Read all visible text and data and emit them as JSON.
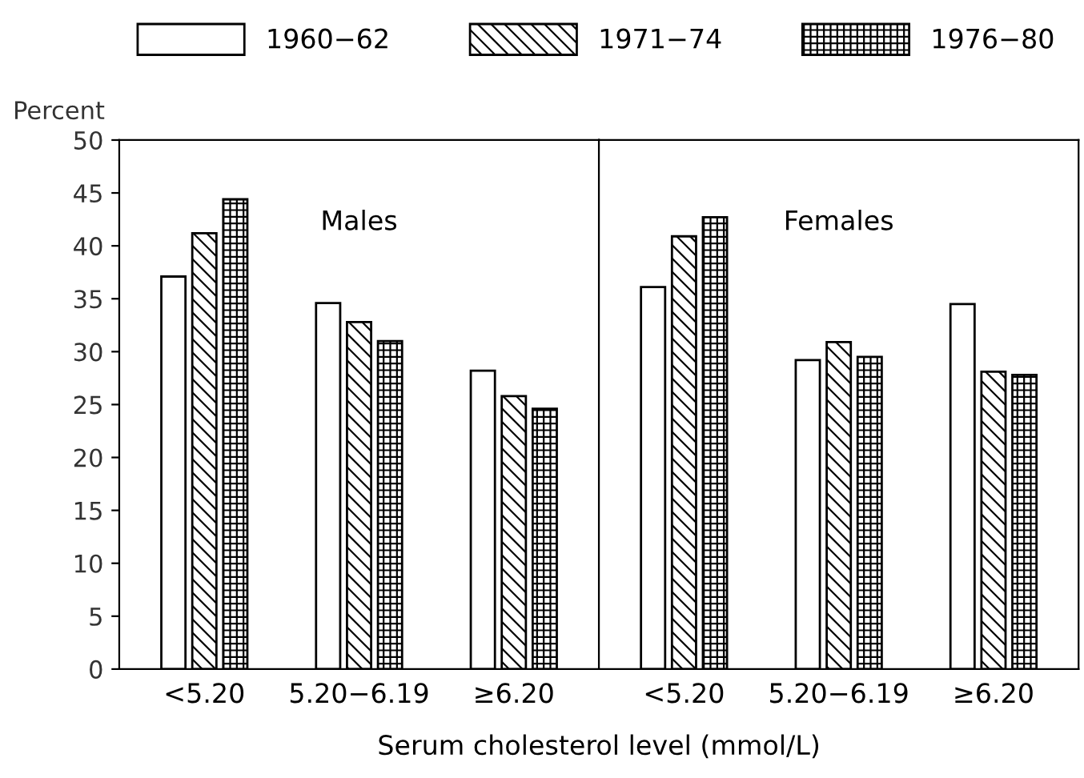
{
  "chart_data": [
    {
      "type": "bar",
      "categories": [
        "<5.20",
        "5.20−6.19",
        "≥6.20"
      ],
      "ylabel": "Percent",
      "xlabel": "Serum cholesterol level (mmol/L)",
      "annotations": [
        "Males"
      ],
      "ylim": [
        0,
        50
      ],
      "yticks": [
        0,
        5,
        10,
        15,
        20,
        25,
        30,
        35,
        40,
        45,
        50
      ],
      "grid": false,
      "legend": "top",
      "series": [
        {
          "name": "1960−62",
          "color": "#ffffff",
          "values": [
            37.1,
            34.6,
            28.2
          ]
        },
        {
          "name": "1971−74",
          "color": "#000000",
          "values": [
            41.2,
            32.8,
            25.8
          ]
        },
        {
          "name": "1976−80",
          "color": "#000000",
          "values": [
            44.4,
            31.0,
            24.6
          ]
        }
      ]
    },
    {
      "type": "bar",
      "categories": [
        "<5.20",
        "5.20−6.19",
        "≥6.20"
      ],
      "annotations": [
        "Females"
      ],
      "ylim": [
        0,
        50
      ],
      "tick_labels": "x",
      "grid": false,
      "series": [
        {
          "color": "#ffffff",
          "values": [
            36.1,
            29.2,
            34.5
          ]
        },
        {
          "color": "#000000",
          "values": [
            40.9,
            30.9,
            28.1
          ]
        },
        {
          "color": "#000000",
          "values": [
            42.7,
            29.5,
            27.8
          ]
        }
      ]
    }
  ]
}
